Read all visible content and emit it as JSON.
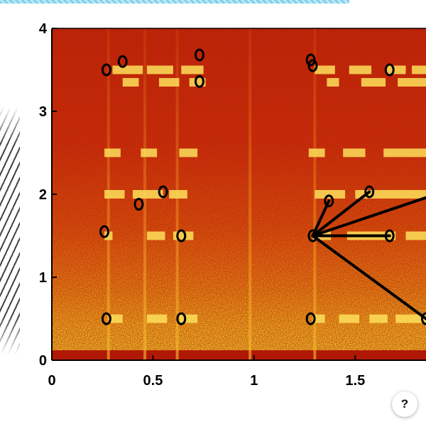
{
  "help": {
    "label": "?"
  },
  "chart_data": {
    "type": "heatmap",
    "title": "",
    "xlabel": "",
    "ylabel": "",
    "xlim": [
      0,
      1.85
    ],
    "ylim": [
      0,
      4
    ],
    "x_ticks": [
      "0",
      "0.5",
      "1",
      "1.5"
    ],
    "y_ticks": [
      "0",
      "1",
      "2",
      "3",
      "4"
    ],
    "x_tick_values": [
      0,
      0.5,
      1,
      1.5
    ],
    "y_tick_values": [
      0,
      1,
      2,
      3,
      4
    ],
    "colormap": [
      "#8b0000",
      "#d42a12",
      "#f0a020",
      "#ffff50"
    ],
    "harmonic_bands": [
      {
        "y": 3.5,
        "segments": [
          [
            0.3,
            0.45
          ],
          [
            0.47,
            0.6
          ],
          [
            0.64,
            0.75
          ],
          [
            1.3,
            1.4
          ],
          [
            1.47,
            1.58
          ],
          [
            1.65,
            1.75
          ],
          [
            1.78,
            1.85
          ]
        ]
      },
      {
        "y": 3.35,
        "segments": [
          [
            0.35,
            0.43
          ],
          [
            0.53,
            0.63
          ],
          [
            0.68,
            0.76
          ],
          [
            1.36,
            1.42
          ],
          [
            1.53,
            1.65
          ],
          [
            1.71,
            1.85
          ]
        ]
      },
      {
        "y": 2.5,
        "segments": [
          [
            0.26,
            0.34
          ],
          [
            0.44,
            0.52
          ],
          [
            0.63,
            0.72
          ],
          [
            1.27,
            1.35
          ],
          [
            1.44,
            1.55
          ],
          [
            1.64,
            1.85
          ]
        ]
      },
      {
        "y": 2.0,
        "segments": [
          [
            0.26,
            0.36
          ],
          [
            0.4,
            0.55
          ],
          [
            0.58,
            0.67
          ],
          [
            1.3,
            1.45
          ],
          [
            1.5,
            1.85
          ]
        ]
      },
      {
        "y": 1.5,
        "segments": [
          [
            0.26,
            0.3
          ],
          [
            0.47,
            0.56
          ],
          [
            0.6,
            0.7
          ],
          [
            1.29,
            1.38
          ],
          [
            1.46,
            1.7
          ],
          [
            1.75,
            1.85
          ]
        ]
      },
      {
        "y": 0.5,
        "segments": [
          [
            0.28,
            0.35
          ],
          [
            0.47,
            0.57
          ],
          [
            0.63,
            0.72
          ],
          [
            1.29,
            1.35
          ],
          [
            1.42,
            1.52
          ],
          [
            1.57,
            1.66
          ],
          [
            1.7,
            1.85
          ]
        ]
      }
    ],
    "vertical_streaks": [
      0.28,
      0.46,
      0.62,
      0.98,
      1.3
    ],
    "circles": [
      {
        "x": 0.27,
        "y": 3.5
      },
      {
        "x": 0.35,
        "y": 3.6
      },
      {
        "x": 0.73,
        "y": 3.68
      },
      {
        "x": 0.73,
        "y": 3.36
      },
      {
        "x": 0.55,
        "y": 2.03
      },
      {
        "x": 0.43,
        "y": 1.88
      },
      {
        "x": 0.26,
        "y": 1.55
      },
      {
        "x": 0.64,
        "y": 1.5
      },
      {
        "x": 0.27,
        "y": 0.5
      },
      {
        "x": 0.64,
        "y": 0.5
      },
      {
        "x": 1.28,
        "y": 3.62
      },
      {
        "x": 1.29,
        "y": 3.55
      },
      {
        "x": 1.67,
        "y": 3.5
      },
      {
        "x": 1.37,
        "y": 1.92
      },
      {
        "x": 1.57,
        "y": 2.03
      },
      {
        "x": 1.29,
        "y": 1.5
      },
      {
        "x": 1.67,
        "y": 1.5
      },
      {
        "x": 1.28,
        "y": 0.5
      },
      {
        "x": 1.85,
        "y": 0.5
      }
    ],
    "connections": [
      {
        "from": [
          1.29,
          1.5
        ],
        "to": [
          1.37,
          1.92
        ]
      },
      {
        "from": [
          1.29,
          1.5
        ],
        "to": [
          1.57,
          2.03
        ]
      },
      {
        "from": [
          1.29,
          1.5
        ],
        "to": [
          1.67,
          1.5
        ]
      },
      {
        "from": [
          1.29,
          1.5
        ],
        "to": [
          1.9,
          2.0
        ]
      },
      {
        "from": [
          1.29,
          1.5
        ],
        "to": [
          1.85,
          0.5
        ]
      }
    ]
  }
}
